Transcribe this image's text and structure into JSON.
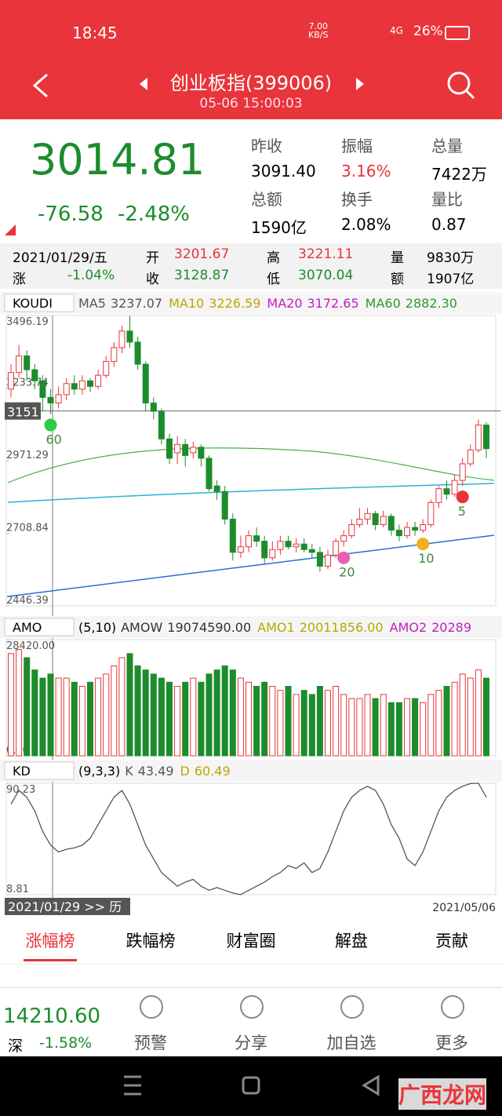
{
  "status_bar": {
    "time": "18:45",
    "speed": "7.00",
    "speed_unit": "KB/S",
    "network": "4G",
    "battery": "26%"
  },
  "header": {
    "title": "创业板指(399006)",
    "datetime": "05-06 15:00:03"
  },
  "quote": {
    "price": "3014.81",
    "change": "-76.58",
    "change_pct": "-2.48%",
    "stats": [
      {
        "label": "昨收",
        "value": "3091.40"
      },
      {
        "label": "振幅",
        "value": "3.16%"
      },
      {
        "label": "总量",
        "value": "7422万"
      },
      {
        "label": "总额",
        "value": "1590亿"
      },
      {
        "label": "换手",
        "value": "2.08%"
      },
      {
        "label": "量比",
        "value": "0.87"
      }
    ]
  },
  "day_info": {
    "date": "2021/01/29/五",
    "change_label": "涨",
    "change": "-1.04%",
    "items": [
      {
        "label": "开",
        "value": "3201.67"
      },
      {
        "label": "高",
        "value": "3221.11"
      },
      {
        "label": "量",
        "value": "9830万"
      },
      {
        "label": "收",
        "value": "3128.87"
      },
      {
        "label": "低",
        "value": "3070.04"
      },
      {
        "label": "额",
        "value": "1907亿"
      }
    ]
  },
  "chart_data": [
    {
      "type": "candlestick",
      "indicator": "KOUDI",
      "legend": [
        {
          "name": "MA5",
          "value": "3237.07",
          "color": "#555555"
        },
        {
          "name": "MA10",
          "value": "3226.59",
          "color": "#b8a800"
        },
        {
          "name": "MA20",
          "value": "3172.65",
          "color": "#c020c0"
        },
        {
          "name": "MA60",
          "value": "2882.30",
          "color": "#2e9a2e"
        }
      ],
      "ylim": [
        2446.39,
        3496.19
      ],
      "yticks": [
        3496.19,
        3233.74,
        2971.29,
        2708.84,
        2446.39
      ],
      "price_line": 3151,
      "markers": [
        {
          "label": "60",
          "index": 5
        },
        {
          "label": "20",
          "index": 42
        },
        {
          "label": "10",
          "index": 52
        },
        {
          "label": "5",
          "index": 57
        }
      ],
      "up_color": "#e8343a",
      "down_color": "#1c8c2c",
      "candles": [
        [
          3230,
          3290,
          3320,
          3200
        ],
        [
          3290,
          3350,
          3390,
          3270
        ],
        [
          3350,
          3300,
          3370,
          3260
        ],
        [
          3300,
          3260,
          3320,
          3230
        ],
        [
          3260,
          3200,
          3280,
          3150
        ],
        [
          3200,
          3180,
          3230,
          3140
        ],
        [
          3180,
          3210,
          3240,
          3160
        ],
        [
          3210,
          3250,
          3270,
          3190
        ],
        [
          3250,
          3230,
          3280,
          3210
        ],
        [
          3230,
          3260,
          3280,
          3210
        ],
        [
          3260,
          3240,
          3270,
          3220
        ],
        [
          3240,
          3280,
          3300,
          3230
        ],
        [
          3280,
          3330,
          3350,
          3270
        ],
        [
          3330,
          3380,
          3400,
          3310
        ],
        [
          3380,
          3440,
          3460,
          3360
        ],
        [
          3440,
          3400,
          3496,
          3380
        ],
        [
          3400,
          3320,
          3420,
          3300
        ],
        [
          3320,
          3180,
          3330,
          3150
        ],
        [
          3180,
          3150,
          3200,
          3120
        ],
        [
          3150,
          3050,
          3160,
          3030
        ],
        [
          3050,
          2980,
          3070,
          2960
        ],
        [
          3000,
          3030,
          3060,
          2960
        ],
        [
          3030,
          2990,
          3050,
          2950
        ],
        [
          3000,
          3020,
          3040,
          2980
        ],
        [
          3020,
          2980,
          3030,
          2950
        ],
        [
          2980,
          2870,
          2990,
          2860
        ],
        [
          2880,
          2860,
          2900,
          2830
        ],
        [
          2860,
          2760,
          2880,
          2740
        ],
        [
          2760,
          2640,
          2780,
          2610
        ],
        [
          2640,
          2660,
          2700,
          2620
        ],
        [
          2660,
          2700,
          2720,
          2640
        ],
        [
          2700,
          2680,
          2730,
          2660
        ],
        [
          2680,
          2620,
          2700,
          2600
        ],
        [
          2620,
          2650,
          2680,
          2610
        ],
        [
          2650,
          2680,
          2700,
          2630
        ],
        [
          2680,
          2660,
          2700,
          2650
        ],
        [
          2660,
          2670,
          2690,
          2640
        ],
        [
          2670,
          2650,
          2690,
          2640
        ],
        [
          2650,
          2640,
          2670,
          2620
        ],
        [
          2640,
          2590,
          2660,
          2570
        ],
        [
          2590,
          2630,
          2650,
          2580
        ],
        [
          2630,
          2680,
          2690,
          2620
        ],
        [
          2680,
          2700,
          2720,
          2660
        ],
        [
          2700,
          2740,
          2760,
          2690
        ],
        [
          2740,
          2760,
          2800,
          2730
        ],
        [
          2760,
          2780,
          2800,
          2740
        ],
        [
          2780,
          2740,
          2790,
          2720
        ],
        [
          2740,
          2770,
          2790,
          2730
        ],
        [
          2770,
          2720,
          2780,
          2700
        ],
        [
          2720,
          2700,
          2740,
          2680
        ],
        [
          2700,
          2730,
          2750,
          2690
        ],
        [
          2730,
          2720,
          2750,
          2700
        ],
        [
          2720,
          2740,
          2760,
          2710
        ],
        [
          2740,
          2820,
          2830,
          2730
        ],
        [
          2820,
          2870,
          2880,
          2800
        ],
        [
          2870,
          2850,
          2900,
          2830
        ],
        [
          2850,
          2900,
          2920,
          2840
        ],
        [
          2900,
          2960,
          2980,
          2880
        ],
        [
          2960,
          3010,
          3030,
          2950
        ],
        [
          3010,
          3100,
          3120,
          3000
        ],
        [
          3100,
          3014.81,
          3110,
          2980
        ]
      ]
    },
    {
      "type": "bar",
      "indicator": "AMO",
      "params": "(5,10)",
      "legend": [
        {
          "name": "AMOW",
          "value": "19074590.00",
          "color": "#333333"
        },
        {
          "name": "AMO1",
          "value": "20011856.00",
          "color": "#b8a800"
        },
        {
          "name": "AMO2",
          "value": "20289",
          "color": "#c020c0"
        }
      ],
      "ylim": [
        0,
        28420
      ],
      "yticks": [
        {
          "value": 28420,
          "label": "28420.00"
        },
        {
          "value": 0,
          "label": "0.00"
        }
      ],
      "values": [
        25000,
        26000,
        24000,
        21000,
        19000,
        20000,
        19000,
        19000,
        18000,
        17000,
        18000,
        19000,
        20000,
        22000,
        24000,
        25000,
        22000,
        21000,
        20000,
        19000,
        18000,
        17000,
        18000,
        19000,
        18000,
        20000,
        21000,
        22000,
        21000,
        19000,
        18000,
        17000,
        18000,
        17000,
        16000,
        17000,
        15000,
        16000,
        15000,
        17000,
        16000,
        17000,
        15000,
        14000,
        14000,
        15000,
        14000,
        15000,
        13000,
        13000,
        14000,
        14000,
        13000,
        15000,
        16000,
        17000,
        18000,
        20000,
        19000,
        21000,
        19000
      ]
    },
    {
      "type": "line",
      "indicator": "KD",
      "params": "(9,3,3)",
      "legend": [
        {
          "name": "K",
          "value": "43.49",
          "color": "#555555"
        },
        {
          "name": "D",
          "value": "60.49",
          "color": "#b8a800"
        }
      ],
      "ylim": [
        8.81,
        90.23
      ],
      "yticks": [
        90.23,
        8.81
      ],
      "series": [
        {
          "name": "K",
          "color": "#555555",
          "values": [
            75,
            85,
            80,
            70,
            55,
            45,
            40,
            42,
            43,
            45,
            50,
            60,
            70,
            80,
            85,
            75,
            60,
            45,
            35,
            25,
            20,
            15,
            18,
            20,
            15,
            12,
            14,
            12,
            10,
            8.81,
            12,
            15,
            18,
            22,
            25,
            30,
            28,
            32,
            25,
            28,
            40,
            55,
            70,
            80,
            85,
            88,
            85,
            75,
            60,
            50,
            35,
            30,
            40,
            55,
            70,
            80,
            85,
            88,
            90,
            90.23,
            80
          ]
        }
      ],
      "start_label": "2021/01/29 >> 历",
      "end_label": "2021/05/06"
    }
  ],
  "tabs": [
    "涨幅榜",
    "跌幅榜",
    "财富圈",
    "解盘",
    "贡献"
  ],
  "bottom_bar": {
    "index_value": "14210.60",
    "index_name": "深",
    "index_change": "-1.58%",
    "buttons": [
      "预警",
      "分享",
      "加自选",
      "更多"
    ]
  },
  "watermark": "广西龙网"
}
